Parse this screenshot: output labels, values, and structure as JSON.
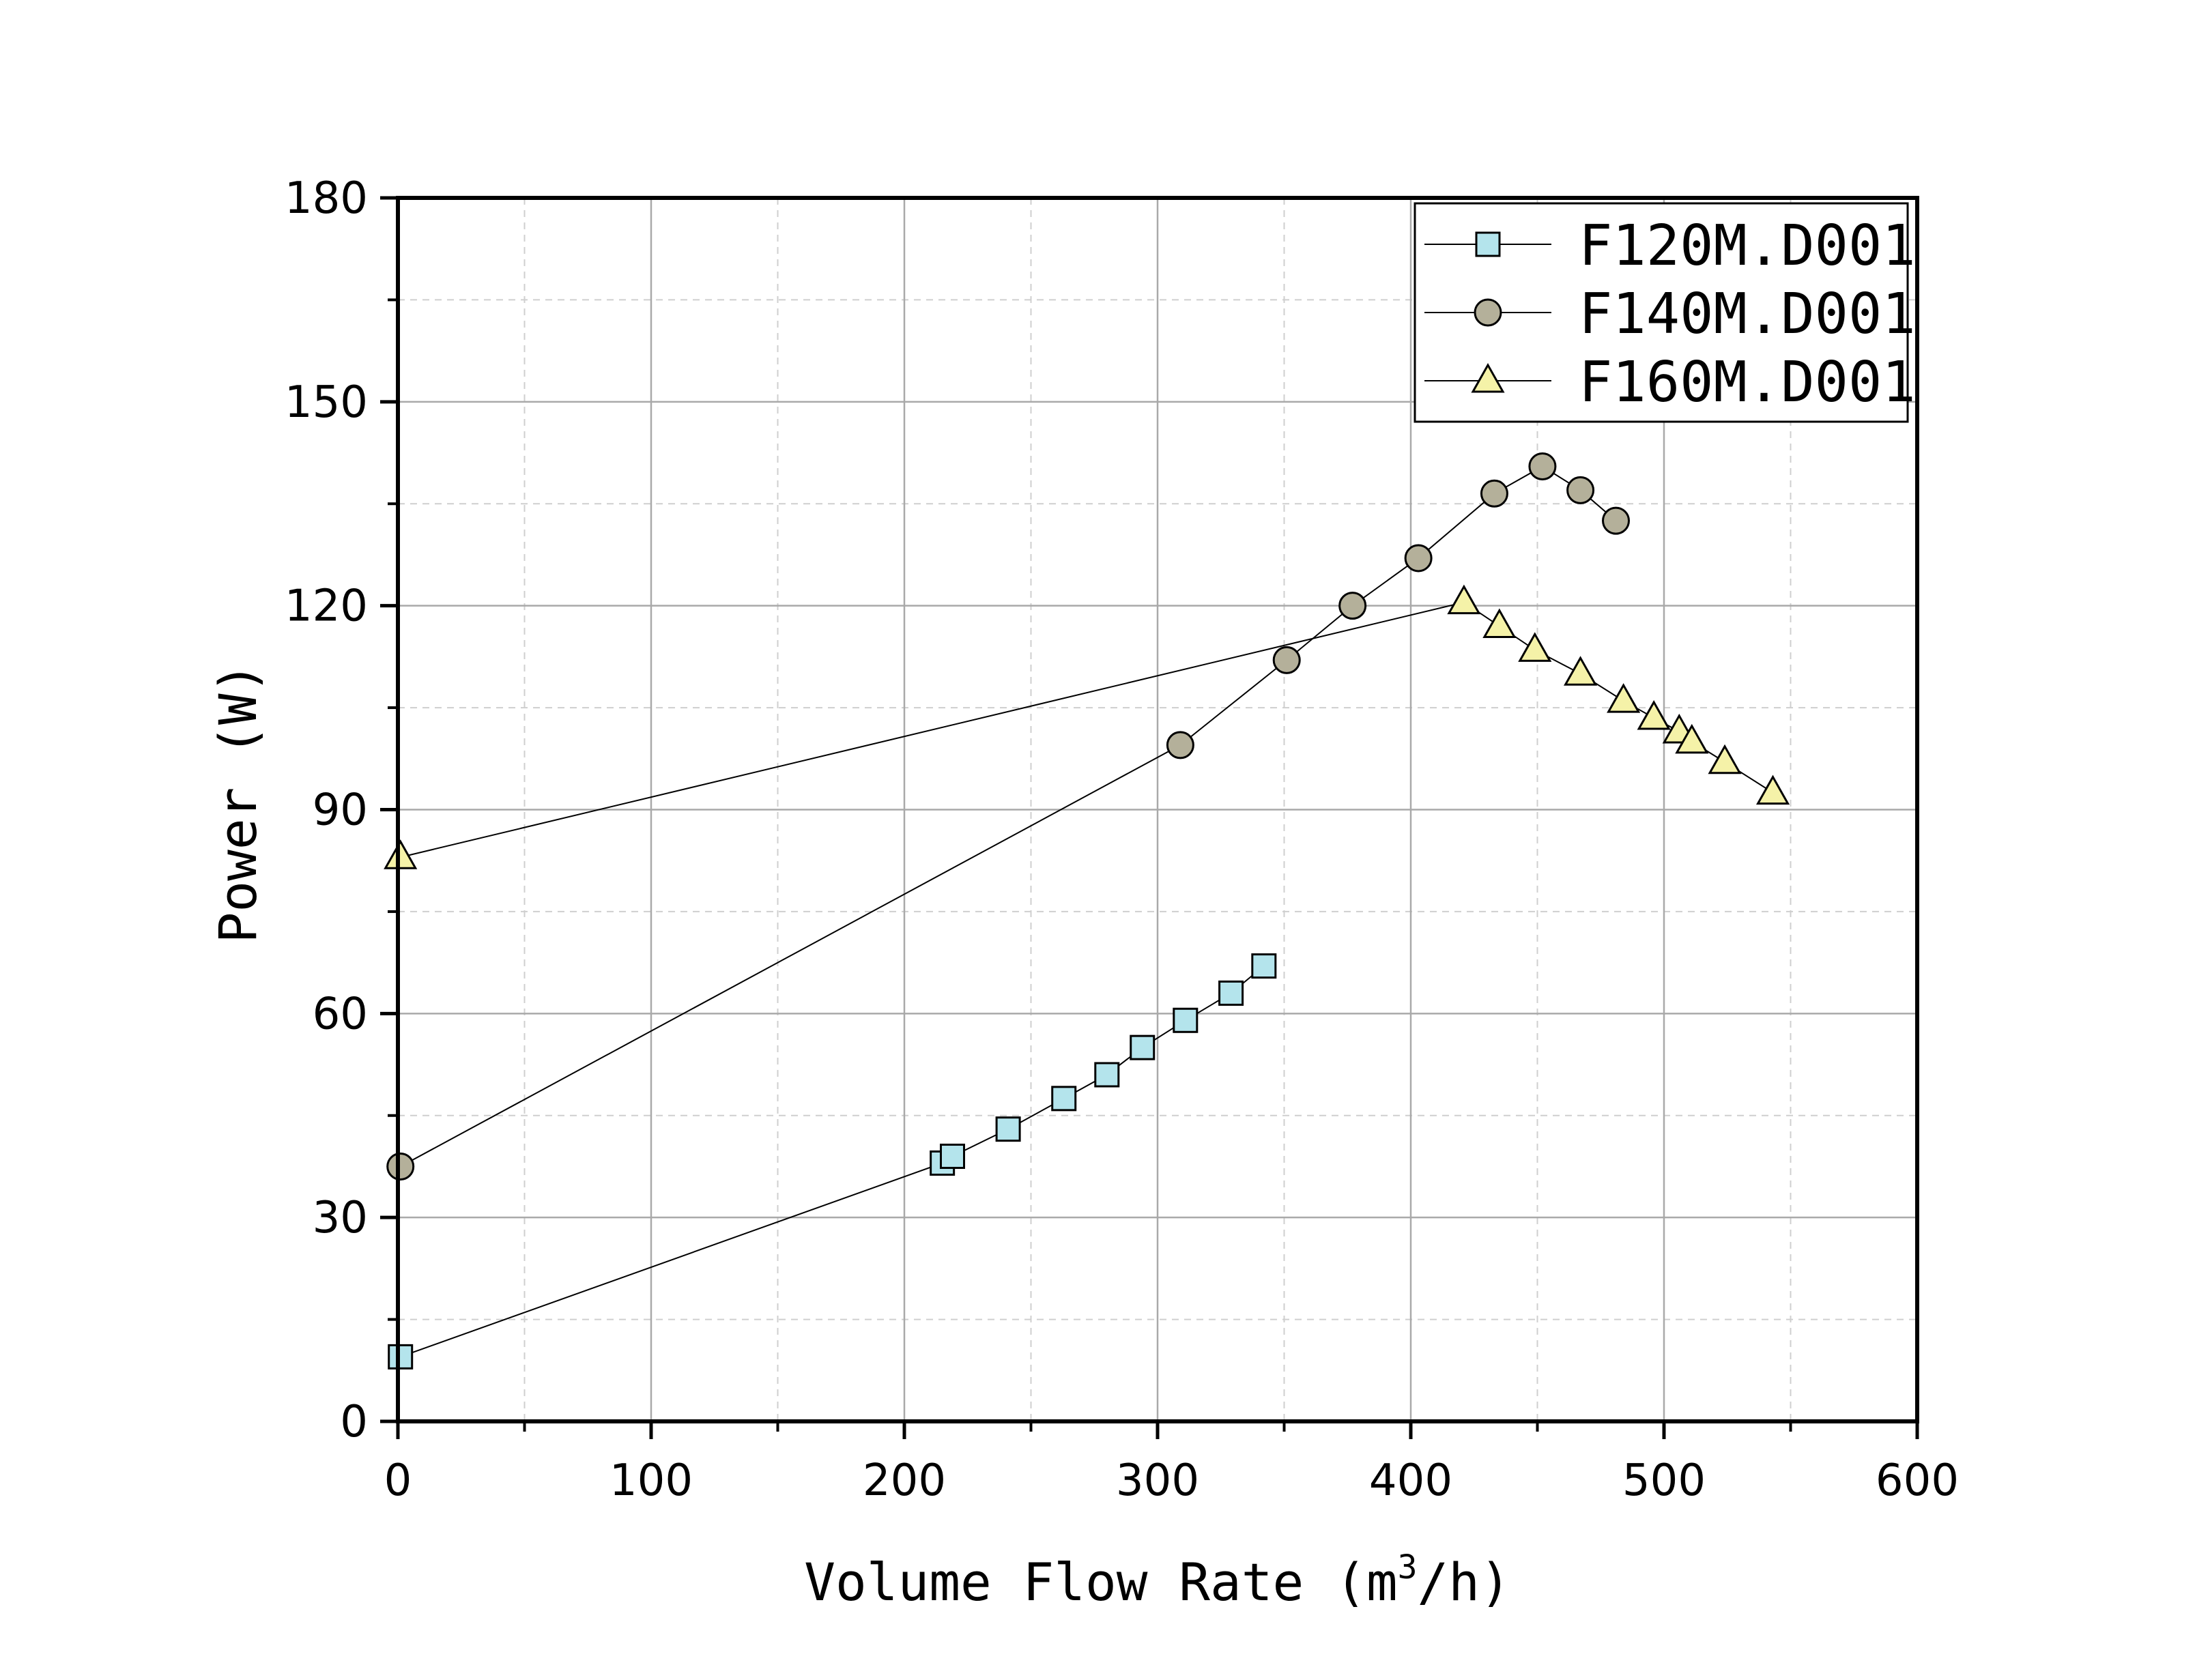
{
  "chart_data": {
    "type": "line",
    "title": "",
    "xlabel": "Volume Flow Rate (m",
    "xlabel_sup": "3",
    "xlabel_tail": "/h)",
    "ylabel": "Power (W)",
    "xlim": [
      0,
      600
    ],
    "ylim": [
      0,
      180
    ],
    "xticks": [
      0,
      100,
      200,
      300,
      400,
      500,
      600
    ],
    "yticks": [
      0,
      30,
      60,
      90,
      120,
      150,
      180
    ],
    "xtick_labels": [
      "0",
      "100",
      "200",
      "300",
      "400",
      "500",
      "600"
    ],
    "ytick_labels": [
      "0",
      "30",
      "60",
      "90",
      "120",
      "150",
      "180"
    ],
    "grid": true,
    "legend_position": "top-right",
    "series": [
      {
        "name": "F120M.D001",
        "marker": "square",
        "color": "#b4e4ec",
        "x": [
          1,
          215,
          219,
          241,
          263,
          280,
          294,
          311,
          329,
          342
        ],
        "y": [
          9.5,
          38,
          39,
          43,
          47.5,
          51,
          55,
          59,
          63,
          67
        ]
      },
      {
        "name": "F140M.D001",
        "marker": "circle",
        "color": "#b4b09a",
        "x": [
          1,
          309,
          351,
          377,
          403,
          433,
          452,
          467,
          481
        ],
        "y": [
          37.5,
          99.5,
          112,
          120,
          127,
          136.5,
          140.5,
          137,
          132.5
        ]
      },
      {
        "name": "F160M.D001",
        "marker": "triangle",
        "color": "#f5f2a8",
        "x": [
          1,
          421,
          435,
          449,
          467,
          484,
          496,
          506,
          511,
          524,
          543
        ],
        "y": [
          83,
          120.5,
          117,
          113.5,
          110,
          106,
          103.5,
          101.5,
          100,
          97,
          92.5
        ]
      }
    ]
  }
}
